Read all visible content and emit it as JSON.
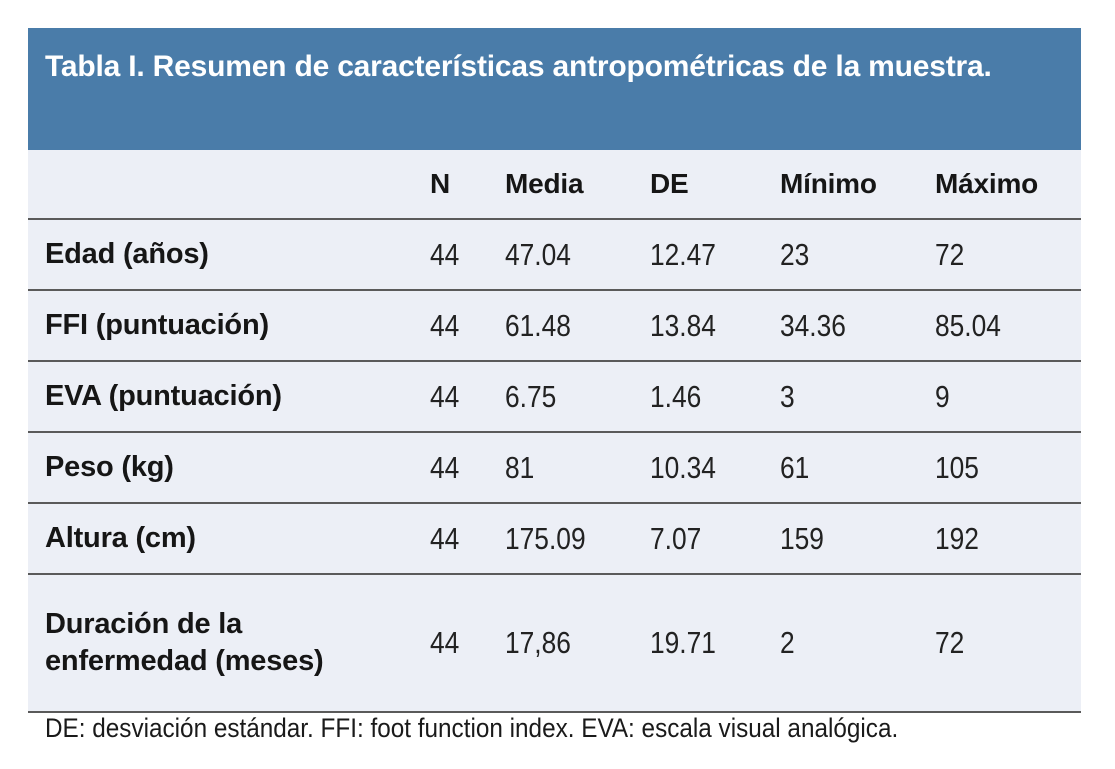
{
  "table": {
    "title": "Tabla I. Resumen de características antropométricas de la muestra.",
    "columns": [
      "",
      "N",
      "Media",
      "DE",
      "Mínimo",
      "Máximo"
    ],
    "rows": [
      {
        "label": "Edad (años)",
        "values": [
          "44",
          "47.04",
          "12.47",
          "23",
          "72"
        ]
      },
      {
        "label": "FFI (puntuación)",
        "values": [
          "44",
          "61.48",
          "13.84",
          "34.36",
          "85.04"
        ]
      },
      {
        "label": "EVA (puntuación)",
        "values": [
          "44",
          "6.75",
          "1.46",
          "3",
          "9"
        ]
      },
      {
        "label": "Peso (kg)",
        "values": [
          "44",
          "81",
          "10.34",
          "61",
          "105"
        ]
      },
      {
        "label": "Altura (cm)",
        "values": [
          "44",
          "175.09",
          "7.07",
          "159",
          "192"
        ]
      },
      {
        "label": "Duración de la enfermedad (meses)",
        "values": [
          "44",
          "17,86",
          "19.71",
          "2",
          "72"
        ]
      }
    ],
    "footnote": "DE: desviación estándar. FFI: foot function index. EVA: escala visual analógica.",
    "colors": {
      "header_bg": "#4A7CA9",
      "header_text": "#FFFFFF",
      "row_bg": "#ECEFF6",
      "divider": "#5A5A5A",
      "text": "#161616"
    }
  },
  "chart_data": {
    "type": "table",
    "title": "Tabla I. Resumen de características antropométricas de la muestra.",
    "columns": [
      "",
      "N",
      "Media",
      "DE",
      "Mínimo",
      "Máximo"
    ],
    "rows": [
      [
        "Edad (años)",
        44,
        47.04,
        12.47,
        23,
        72
      ],
      [
        "FFI (puntuación)",
        44,
        61.48,
        13.84,
        34.36,
        85.04
      ],
      [
        "EVA (puntuación)",
        44,
        6.75,
        1.46,
        3,
        9
      ],
      [
        "Peso (kg)",
        44,
        81,
        10.34,
        61,
        105
      ],
      [
        "Altura (cm)",
        44,
        175.09,
        7.07,
        159,
        192
      ],
      [
        "Duración de la enfermedad (meses)",
        44,
        "17,86",
        19.71,
        2,
        72
      ]
    ],
    "footnote": "DE: desviación estándar. FFI: foot function index. EVA: escala visual analógica."
  }
}
